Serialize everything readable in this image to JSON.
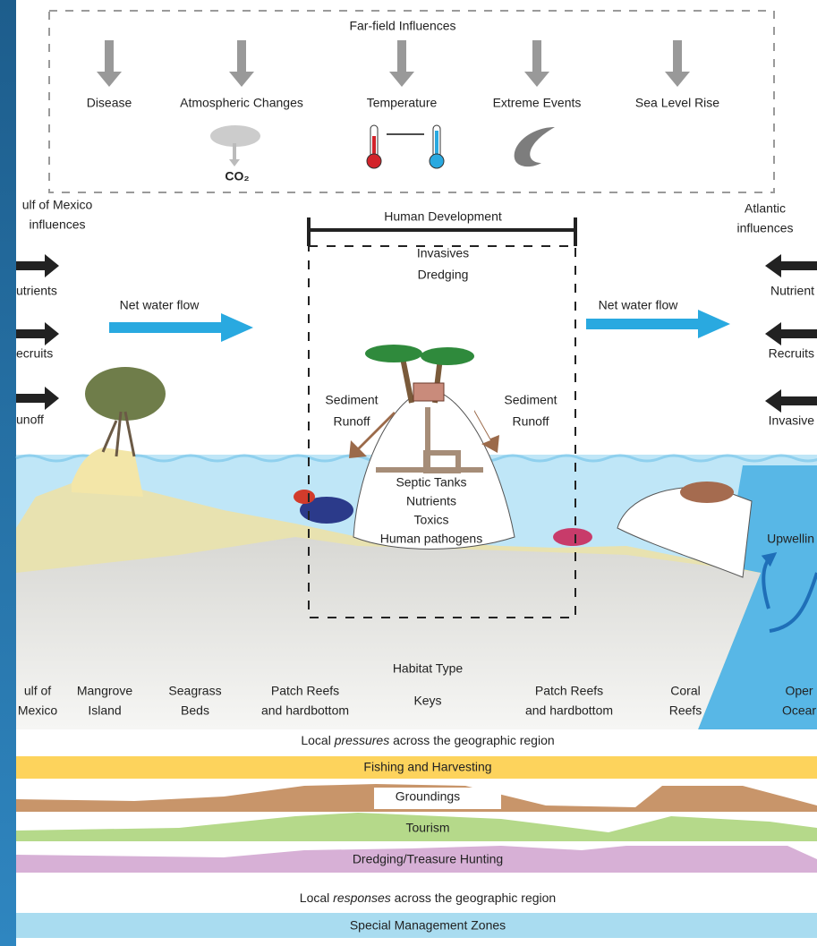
{
  "far_field": {
    "title": "Far-field Influences",
    "items": [
      "Disease",
      "Atmospheric Changes",
      "Temperature",
      "Extreme Events",
      "Sea Level Rise"
    ],
    "co2": "CO₂"
  },
  "left_influences": {
    "title": [
      "ulf of Mexico",
      "influences"
    ],
    "items": [
      "utrients",
      "ecruits",
      "unoff"
    ]
  },
  "right_influences": {
    "title": [
      "Atlantic",
      "influences"
    ],
    "items": [
      "Nutrient",
      "Recruits",
      "Invasive"
    ]
  },
  "net_flow": [
    "Net water flow",
    "Net water flow"
  ],
  "human_development": {
    "title": "Human Development",
    "items": [
      "Invasives",
      "Dredging"
    ]
  },
  "sediment_runoff": [
    [
      "Sediment",
      "Runoff"
    ],
    [
      "Sediment",
      "Runoff"
    ]
  ],
  "keys_inputs": [
    "Septic Tanks",
    "Nutrients",
    "Toxics",
    "Human pathogens"
  ],
  "upwelling": "Upwellin",
  "habitat": {
    "title": "Habitat Type",
    "types": [
      [
        "ulf of",
        "Mexico"
      ],
      [
        "Mangrove",
        "Island"
      ],
      [
        "Seagrass",
        "Beds"
      ],
      [
        "Patch Reefs",
        "and hardbottom"
      ],
      [
        "Keys"
      ],
      [
        "Patch Reefs",
        "and hardbottom"
      ],
      [
        "Coral",
        "Reefs"
      ],
      [
        "Oper",
        "Ocear"
      ]
    ]
  },
  "pressures": {
    "title": {
      "before": "Local ",
      "emphasis": "pressures",
      "after": " across the geographic region"
    },
    "bands": [
      "Fishing and Harvesting",
      "Groundings",
      "Tourism",
      "Dredging/Treasure Hunting"
    ]
  },
  "responses": {
    "title": {
      "before": "Local ",
      "emphasis": "responses",
      "after": " across the geographic region"
    },
    "bands": [
      "Special Management Zones"
    ]
  }
}
